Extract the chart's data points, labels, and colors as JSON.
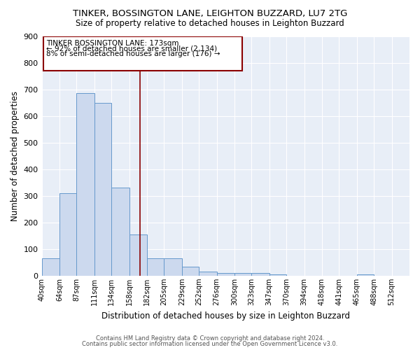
{
  "title": "TINKER, BOSSINGTON LANE, LEIGHTON BUZZARD, LU7 2TG",
  "subtitle": "Size of property relative to detached houses in Leighton Buzzard",
  "xlabel": "Distribution of detached houses by size in Leighton Buzzard",
  "ylabel": "Number of detached properties",
  "bar_color": "#ccd9ee",
  "bar_edge_color": "#6699cc",
  "background_color": "#e8eef7",
  "vline_x": 173,
  "vline_color": "#8b0000",
  "categories": [
    "40sqm",
    "64sqm",
    "87sqm",
    "111sqm",
    "134sqm",
    "158sqm",
    "182sqm",
    "205sqm",
    "229sqm",
    "252sqm",
    "276sqm",
    "300sqm",
    "323sqm",
    "347sqm",
    "370sqm",
    "394sqm",
    "418sqm",
    "441sqm",
    "465sqm",
    "488sqm",
    "512sqm"
  ],
  "bin_edges": [
    40,
    64,
    87,
    111,
    134,
    158,
    182,
    205,
    229,
    252,
    276,
    300,
    323,
    347,
    370,
    394,
    418,
    441,
    465,
    488,
    512
  ],
  "values": [
    65,
    310,
    685,
    650,
    330,
    155,
    65,
    65,
    35,
    15,
    10,
    10,
    10,
    5,
    0,
    0,
    0,
    0,
    5,
    0,
    0
  ],
  "ylim": [
    0,
    900
  ],
  "yticks": [
    0,
    100,
    200,
    300,
    400,
    500,
    600,
    700,
    800,
    900
  ],
  "annotation_text_line1": "TINKER BOSSINGTON LANE: 173sqm",
  "annotation_text_line2": "← 92% of detached houses are smaller (2,134)",
  "annotation_text_line3": "8% of semi-detached houses are larger (176) →",
  "annotation_box_color": "#ffffff",
  "annotation_box_edge": "#8b0000",
  "footer_line1": "Contains HM Land Registry data © Crown copyright and database right 2024.",
  "footer_line2": "Contains public sector information licensed under the Open Government Licence v3.0."
}
